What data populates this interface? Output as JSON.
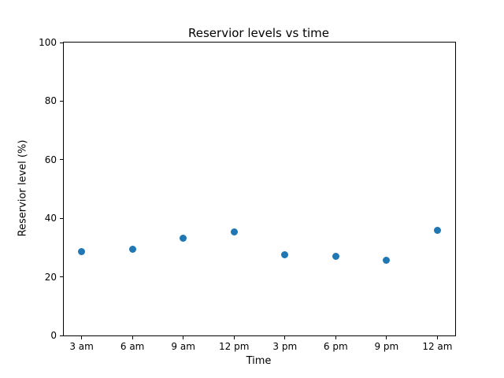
{
  "chart_data": {
    "type": "scatter",
    "title": "Reservior levels vs time",
    "xlabel": "Time",
    "ylabel": "Reservior level (%)",
    "categories": [
      "3 am",
      "6 am",
      "9 am",
      "12 pm",
      "3 pm",
      "6 pm",
      "9 pm",
      "12 am"
    ],
    "values": [
      28.7,
      29.4,
      33.1,
      35.4,
      27.6,
      27.1,
      25.7,
      35.8
    ],
    "ylim": [
      0,
      100
    ],
    "yticks": [
      0,
      20,
      40,
      60,
      80,
      100
    ],
    "grid": false,
    "legend": false,
    "marker_color": "#1f77b4",
    "background_color": "#ffffff"
  }
}
